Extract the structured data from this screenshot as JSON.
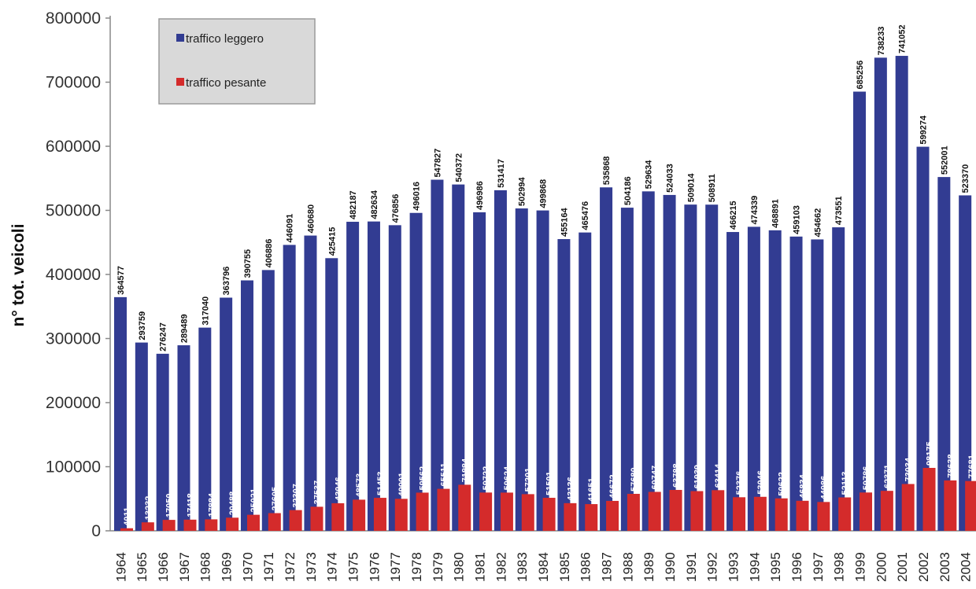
{
  "chart_data": {
    "type": "bar",
    "title": "",
    "xlabel": "",
    "ylabel": "n° tot. veicoli",
    "ylim": [
      0,
      800000
    ],
    "yticks": [
      0,
      100000,
      200000,
      300000,
      400000,
      500000,
      600000,
      700000,
      800000
    ],
    "ytick_labels": [
      "0",
      "100000",
      "200000",
      "300000",
      "400000",
      "500000",
      "600000",
      "700000",
      "800000"
    ],
    "grid": false,
    "legend_position": "top-left",
    "categories": [
      "1964",
      "1965",
      "1966",
      "1967",
      "1968",
      "1969",
      "1970",
      "1971",
      "1972",
      "1973",
      "1974",
      "1975",
      "1976",
      "1977",
      "1978",
      "1979",
      "1980",
      "1981",
      "1982",
      "1983",
      "1984",
      "1985",
      "1986",
      "1987",
      "1988",
      "1989",
      "1990",
      "1991",
      "1992",
      "1993",
      "1994",
      "1995",
      "1996",
      "1997",
      "1998",
      "1999",
      "2000",
      "2001",
      "2002",
      "2003",
      "2004"
    ],
    "series": [
      {
        "name": "traffico leggero",
        "color": "#323c92",
        "values": [
          364577,
          293759,
          276247,
          289489,
          317040,
          363796,
          390755,
          406886,
          446091,
          460680,
          425415,
          482187,
          482634,
          476856,
          496016,
          547827,
          540372,
          496986,
          531417,
          502994,
          499868,
          455164,
          465476,
          535868,
          504186,
          529634,
          524033,
          509014,
          508911,
          466215,
          474339,
          468891,
          459103,
          454662,
          473551,
          685256,
          738233,
          741052,
          599274,
          552001,
          523370
        ]
      },
      {
        "name": "traffico pesante",
        "color": "#d42b2b",
        "values": [
          4011,
          13232,
          17050,
          17418,
          17884,
          20488,
          25021,
          27605,
          32307,
          37537,
          43046,
          48573,
          51453,
          49901,
          59562,
          65511,
          71884,
          59722,
          59624,
          57201,
          51501,
          43136,
          41651,
          46672,
          57680,
          60747,
          63788,
          61939,
          63414,
          52376,
          53046,
          50622,
          46834,
          44986,
          52113,
          59786,
          62371,
          73034,
          98175,
          78638,
          77681
        ]
      }
    ]
  }
}
